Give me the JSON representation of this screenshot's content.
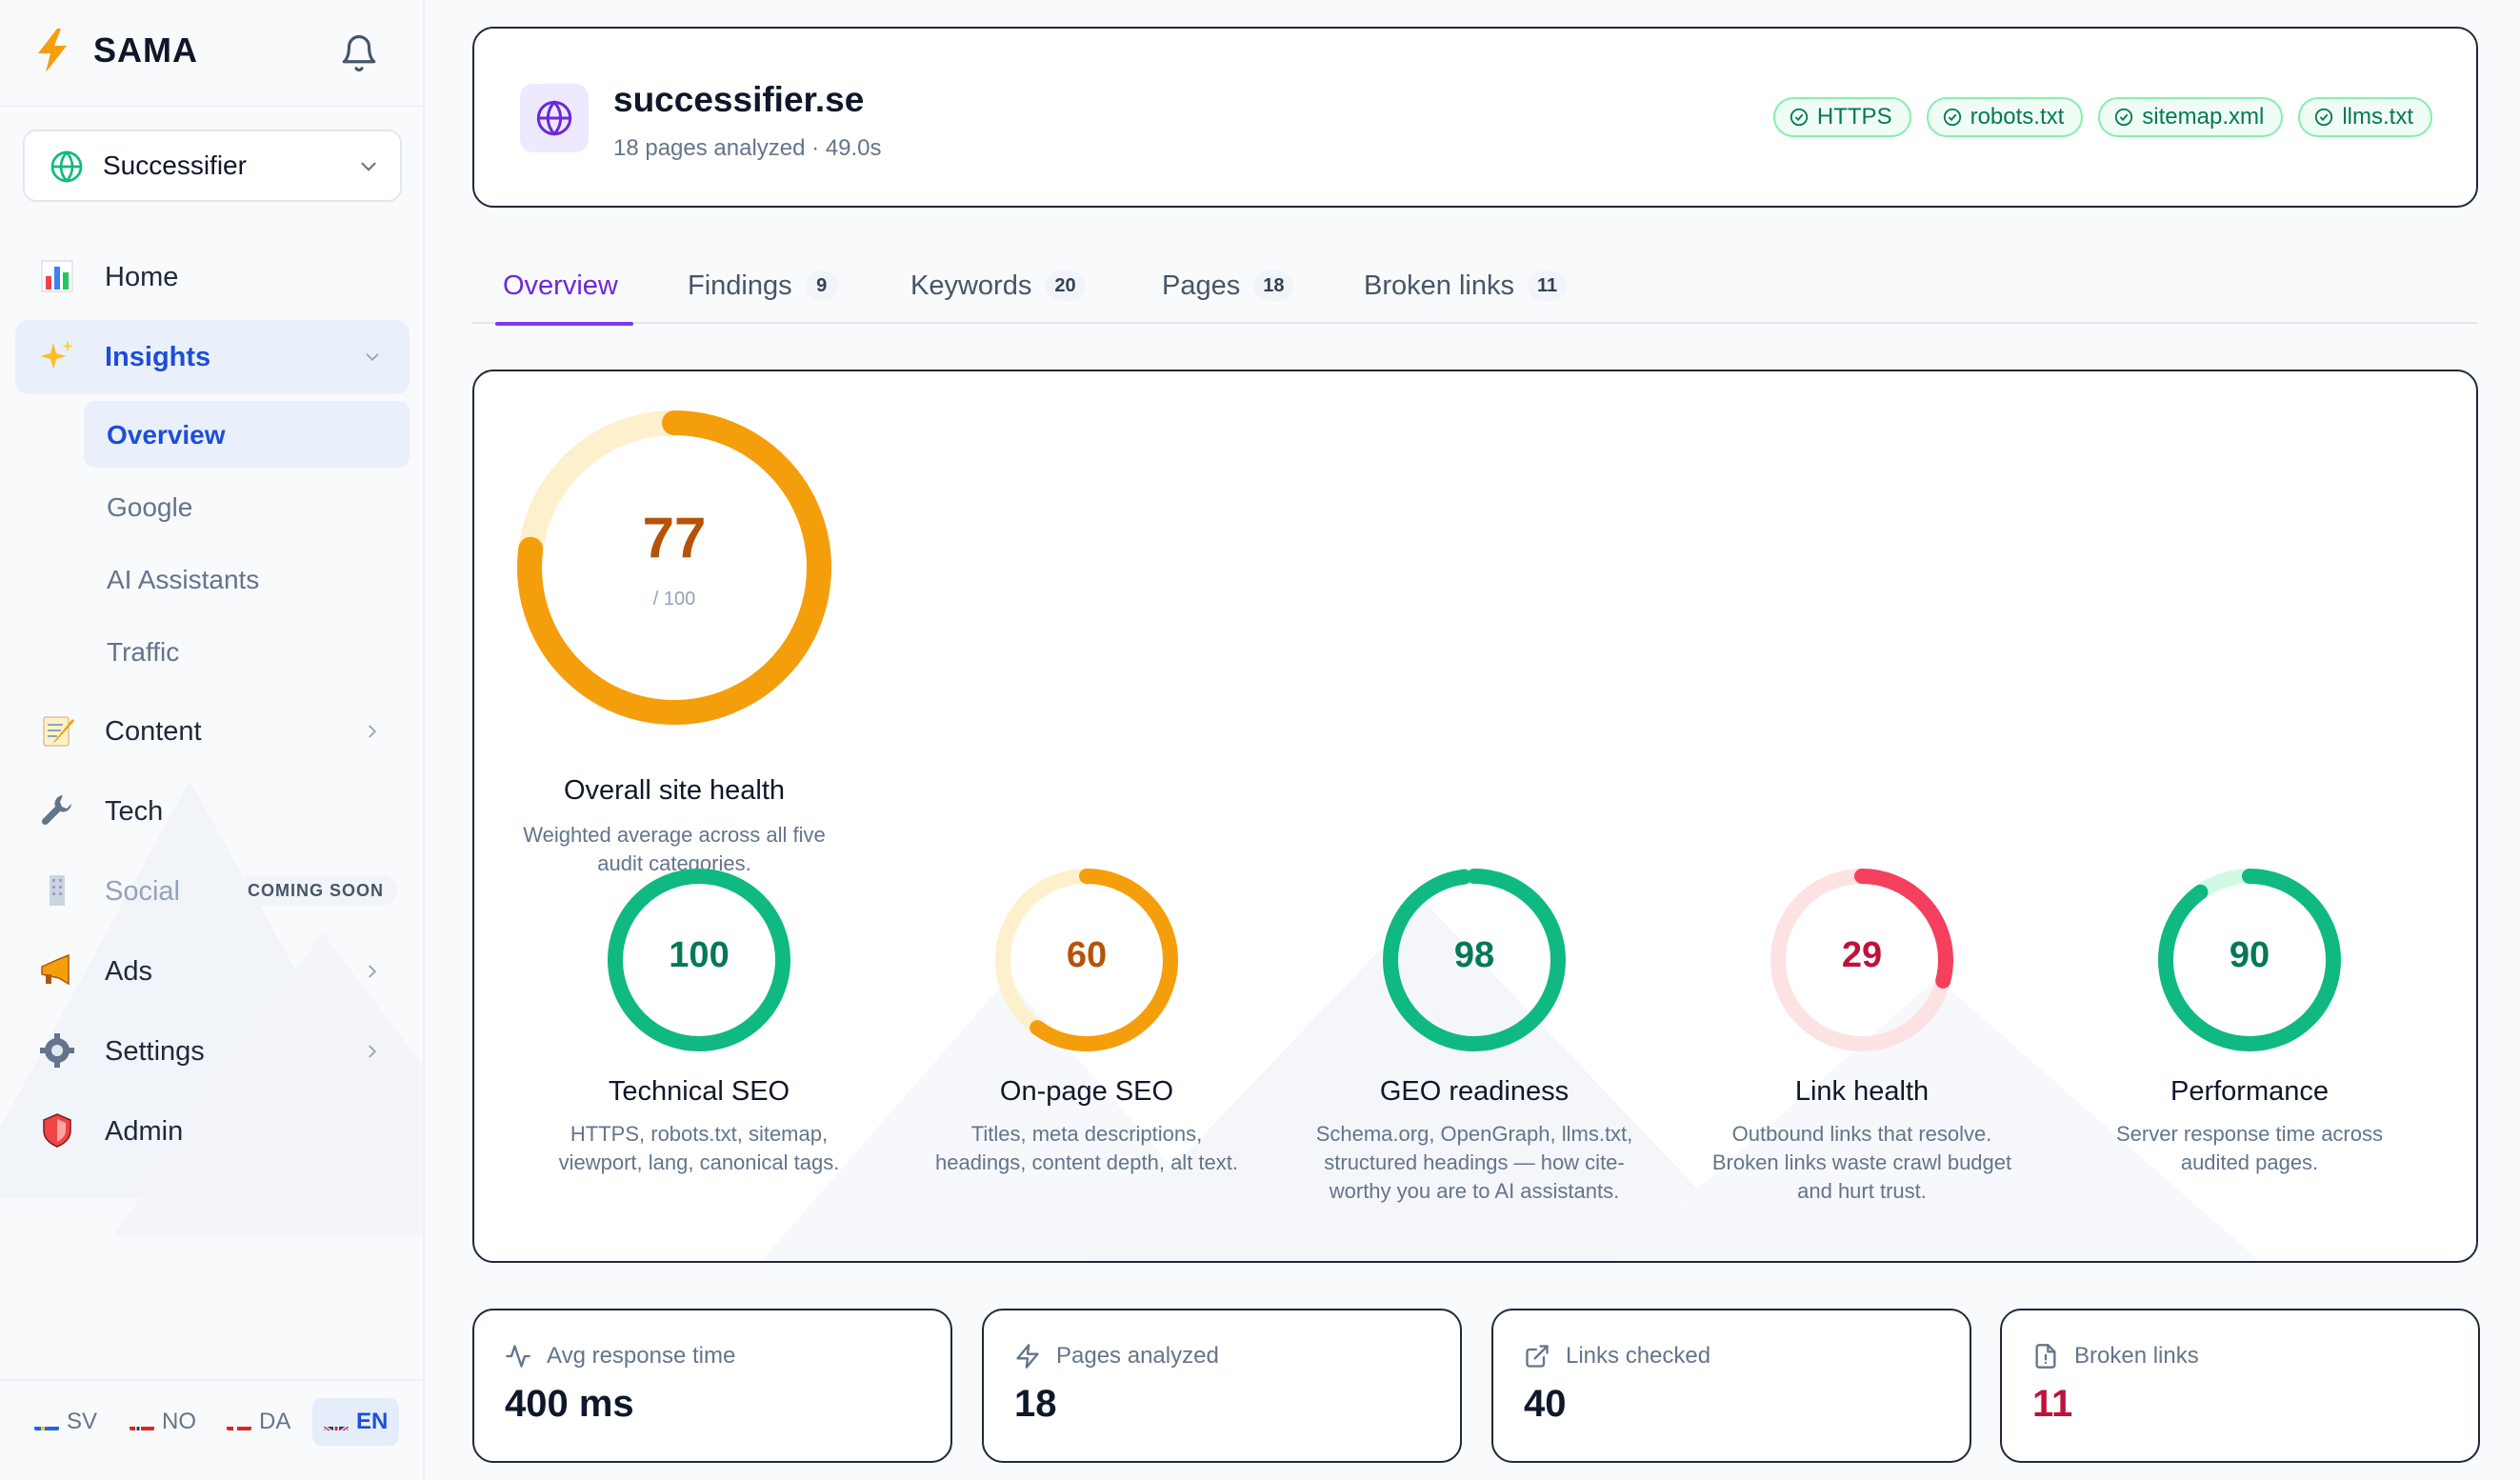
{
  "app": {
    "name": "SAMA"
  },
  "workspace": {
    "name": "Successifier"
  },
  "nav": {
    "home": "Home",
    "insights": "Insights",
    "insights_sub": [
      "Overview",
      "Google",
      "AI Assistants",
      "Traffic"
    ],
    "content": "Content",
    "tech": "Tech",
    "social": "Social",
    "social_badge": "COMING SOON",
    "ads": "Ads",
    "settings": "Settings",
    "admin": "Admin"
  },
  "languages": [
    {
      "code": "SV",
      "active": false
    },
    {
      "code": "NO",
      "active": false
    },
    {
      "code": "DA",
      "active": false
    },
    {
      "code": "EN",
      "active": true
    }
  ],
  "site": {
    "domain": "successifier.se",
    "subtitle": "18 pages analyzed · 49.0s",
    "badges": [
      "HTTPS",
      "robots.txt",
      "sitemap.xml",
      "llms.txt"
    ]
  },
  "tabs": [
    {
      "label": "Overview",
      "count": null
    },
    {
      "label": "Findings",
      "count": "9"
    },
    {
      "label": "Keywords",
      "count": "20"
    },
    {
      "label": "Pages",
      "count": "18"
    },
    {
      "label": "Broken links",
      "count": "11"
    }
  ],
  "overall": {
    "score": 77,
    "out_of": "/ 100",
    "title": "Overall site health",
    "description_lines": [
      "Weighted average across all five",
      "audit categories."
    ],
    "color": "#f59e0b",
    "track_color": "#fdf0cc",
    "text_color": "#b45309"
  },
  "categories": [
    {
      "score": 100,
      "title": "Technical SEO",
      "desc": [
        "HTTPS, robots.txt, sitemap,",
        "viewport, lang, canonical tags."
      ],
      "color": "#10b981",
      "track": "#d1fae5",
      "text_color": "#047857"
    },
    {
      "score": 60,
      "title": "On-page SEO",
      "desc": [
        "Titles, meta descriptions,",
        "headings, content depth, alt text."
      ],
      "color": "#f59e0b",
      "track": "#fdf0cc",
      "text_color": "#b45309"
    },
    {
      "score": 98,
      "title": "GEO readiness",
      "desc": [
        "Schema.org, OpenGraph, llms.txt,",
        "structured headings — how cite-",
        "worthy you are to AI assistants."
      ],
      "color": "#10b981",
      "track": "#d1fae5",
      "text_color": "#047857"
    },
    {
      "score": 29,
      "title": "Link health",
      "desc": [
        "Outbound links that resolve.",
        "Broken links waste crawl budget",
        "and hurt trust."
      ],
      "color": "#f43f5e",
      "track": "#fde2e4",
      "text_color": "#be123c"
    },
    {
      "score": 90,
      "title": "Performance",
      "desc": [
        "Server response time across",
        "audited pages."
      ],
      "color": "#10b981",
      "track": "#d1fae5",
      "text_color": "#047857"
    }
  ],
  "metrics": [
    {
      "label": "Avg response time",
      "value": "400 ms",
      "icon": "activity-icon",
      "alert": false
    },
    {
      "label": "Pages analyzed",
      "value": "18",
      "icon": "zap-icon",
      "alert": false
    },
    {
      "label": "Links checked",
      "value": "40",
      "icon": "external-link-icon",
      "alert": false
    },
    {
      "label": "Broken links",
      "value": "11",
      "icon": "file-alert-icon",
      "alert": true
    }
  ]
}
